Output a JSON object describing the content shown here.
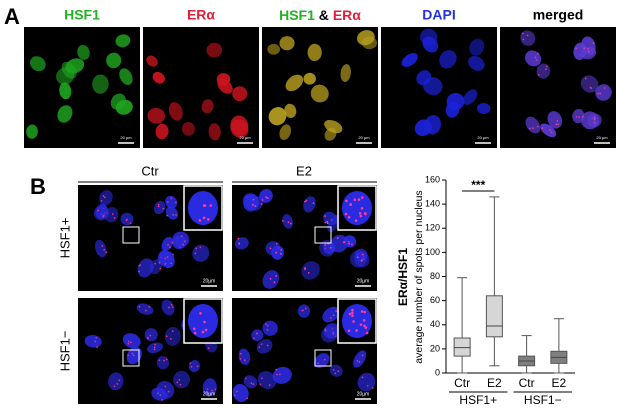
{
  "panel_a": {
    "label": "A",
    "columns": [
      {
        "title": "HSF1"
      },
      {
        "title": "ERα"
      },
      {
        "title_parts": [
          "HSF1",
          "&",
          "ERα"
        ]
      },
      {
        "title": "DAPI"
      },
      {
        "title": "merged"
      }
    ],
    "scale_bar": "20 µm"
  },
  "panel_b": {
    "label": "B",
    "conditions": [
      "Ctr",
      "E2"
    ],
    "rows": [
      "HSF1+",
      "HSF1−"
    ],
    "scale_bar": "20µm"
  },
  "chart_data": {
    "type": "box",
    "ylabel": "ERα/HSF1",
    "ylabel_sub": "average number of spots per nucleus",
    "categories": [
      "Ctr",
      "E2",
      "Ctr",
      "E2"
    ],
    "groups": [
      {
        "label": "HSF1+",
        "members": [
          0,
          1
        ]
      },
      {
        "label": "HSF1−",
        "members": [
          2,
          3
        ]
      }
    ],
    "boxes": [
      {
        "min": 0,
        "q1": 14,
        "median": 21,
        "q3": 29,
        "max": 79
      },
      {
        "min": 6,
        "q1": 30,
        "median": 39,
        "q3": 64,
        "max": 146
      },
      {
        "min": 0,
        "q1": 6,
        "median": 10,
        "q3": 14,
        "max": 31
      },
      {
        "min": 0,
        "q1": 8,
        "median": 13,
        "q3": 18,
        "max": 45
      }
    ],
    "colors": [
      "#d6d6d6",
      "#d6d6d6",
      "#7f7f7f",
      "#7f7f7f"
    ],
    "ylim": [
      0,
      160
    ],
    "yticks": [
      0,
      20,
      40,
      60,
      80,
      100,
      120,
      140,
      160
    ],
    "annotation": {
      "text": "***",
      "between": [
        0,
        1
      ]
    }
  }
}
